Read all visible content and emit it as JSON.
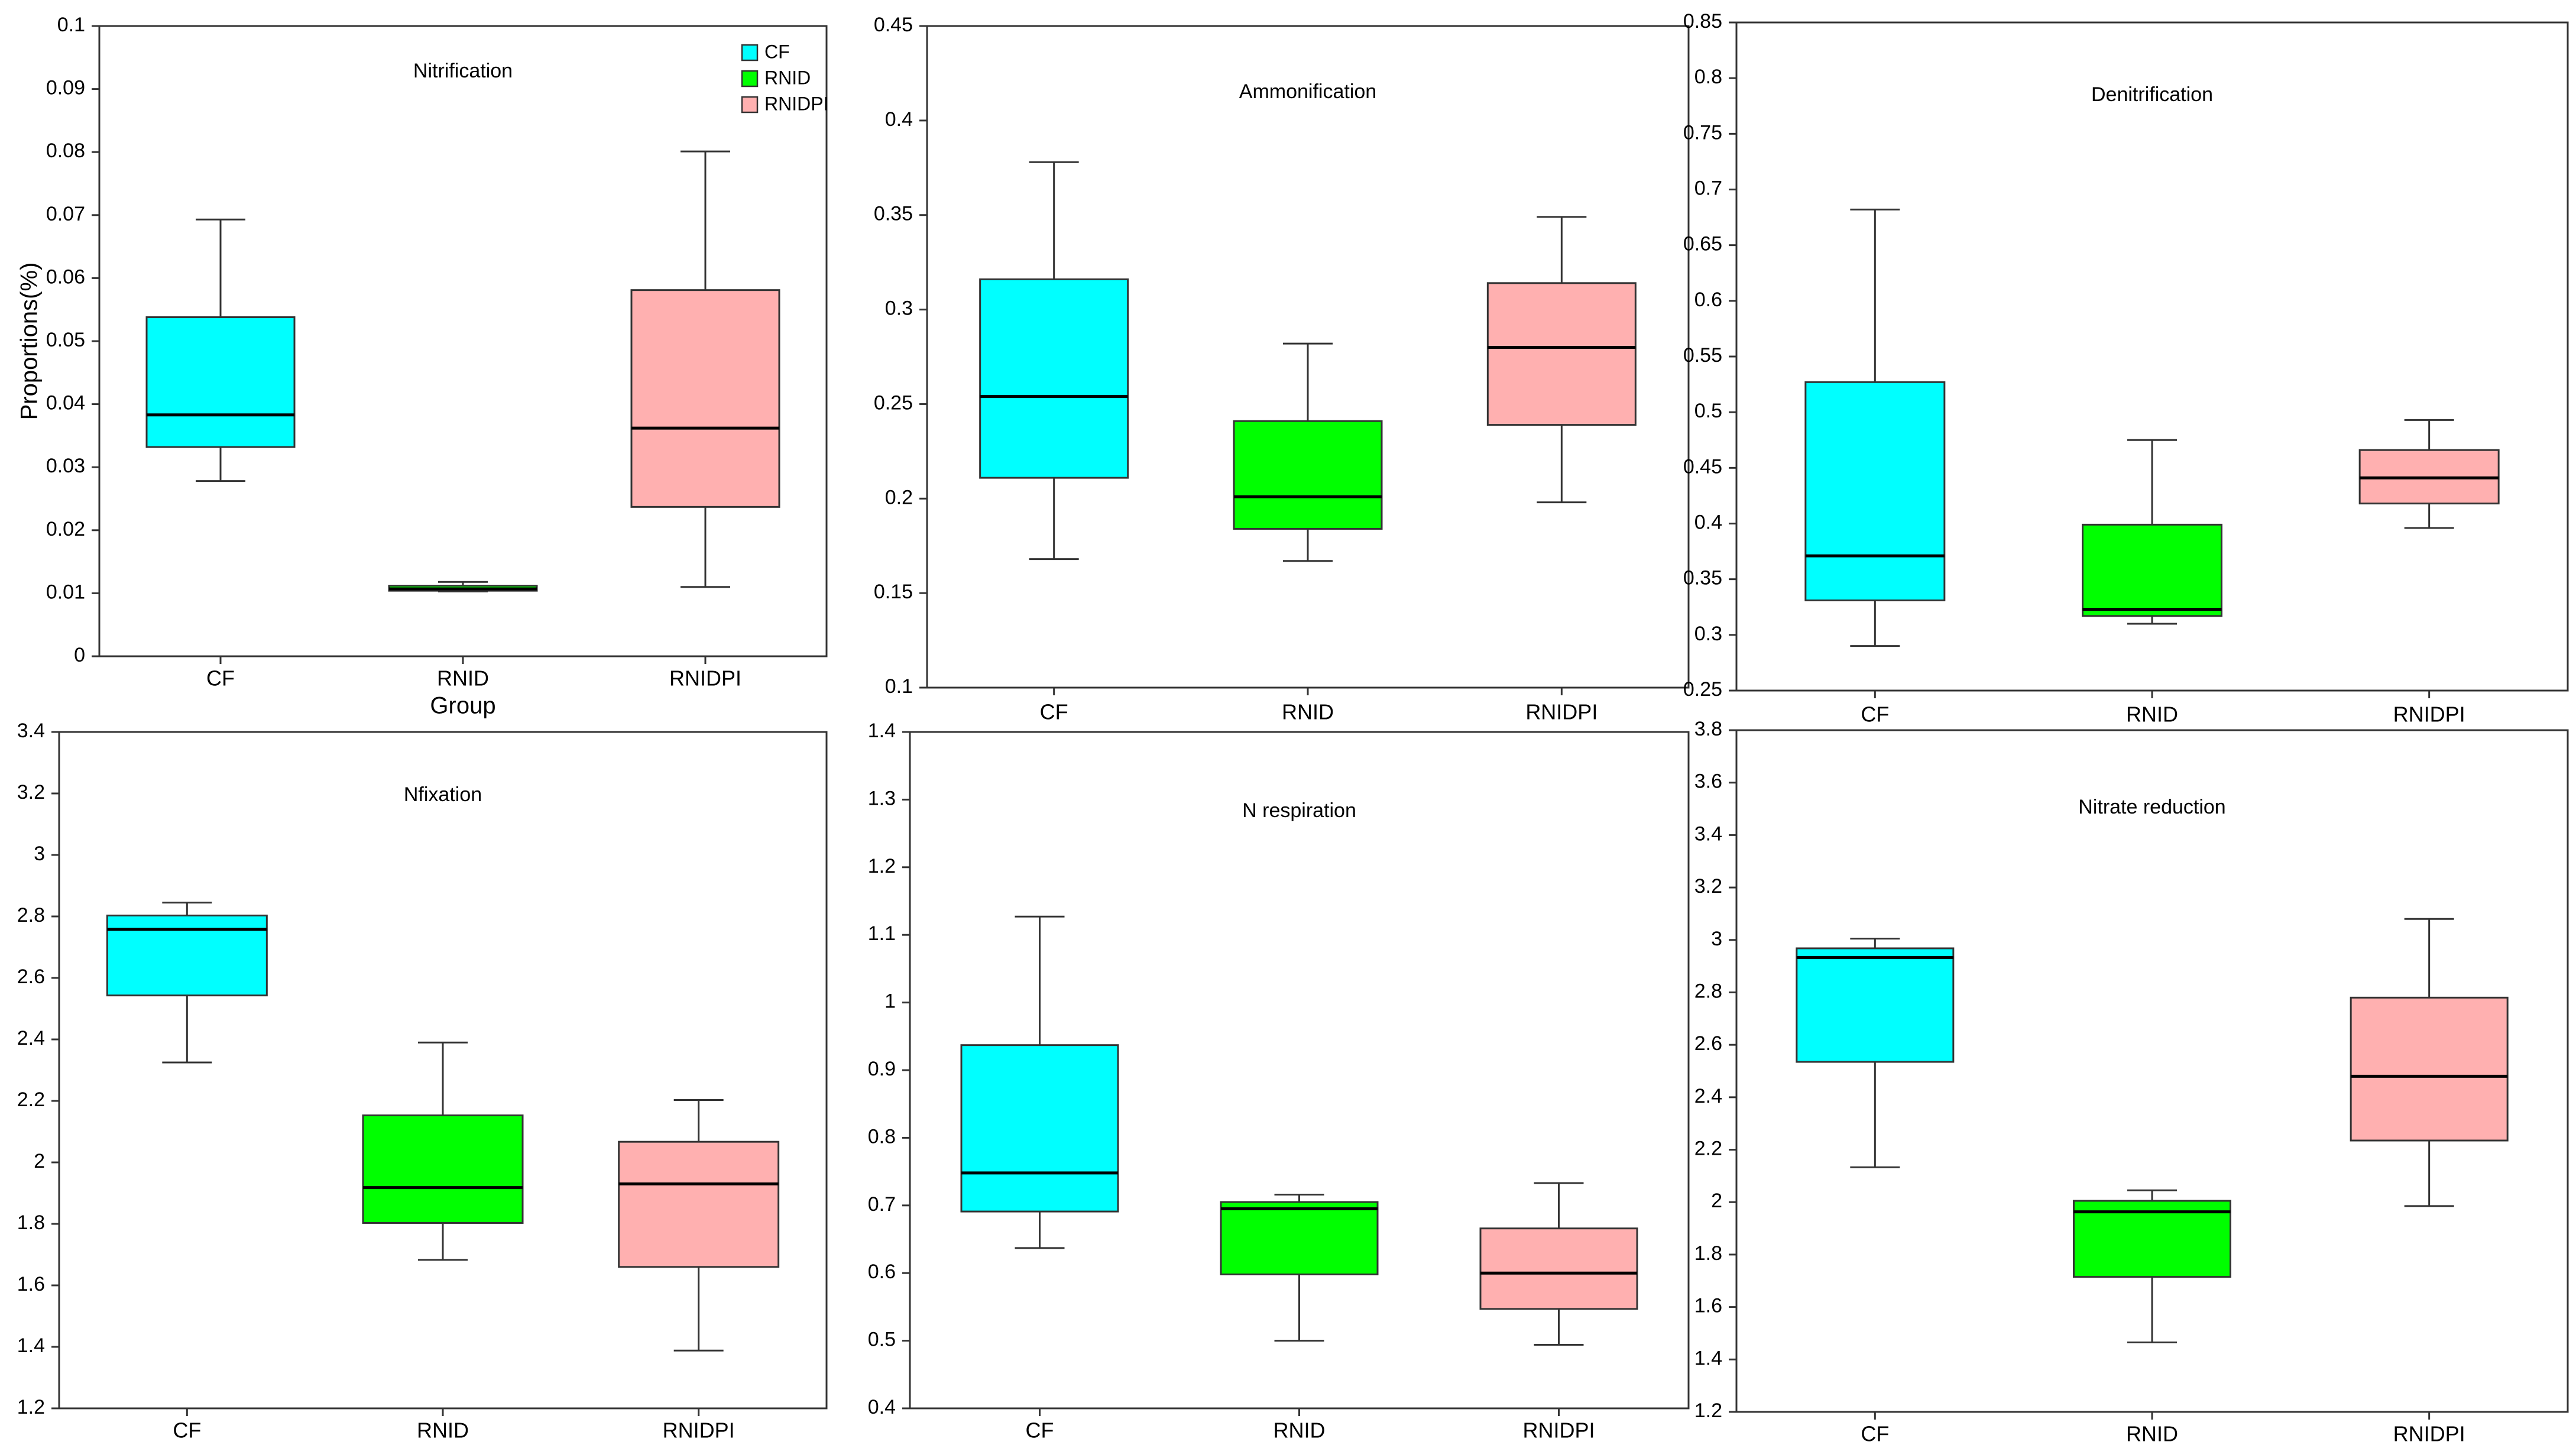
{
  "colors": {
    "CF": "#00ffff",
    "RNID": "#00ff00",
    "RNIDPI": "#ffb0b0",
    "frame": "#333333",
    "median": "#000000"
  },
  "chart_data": [
    {
      "type": "box",
      "title": "Nitrification",
      "xlabel": "Group",
      "ylabel": "Proportions(%)",
      "categories": [
        "CF",
        "RNID",
        "RNIDPI"
      ],
      "ylim": [
        0,
        0.1
      ],
      "yticks": [
        "0",
        "0.01",
        "0.02",
        "0.03",
        "0.04",
        "0.05",
        "0.06",
        "0.07",
        "0.08",
        "0.09",
        "0.1"
      ],
      "legend": [
        "CF",
        "RNID",
        "RNIDPI"
      ],
      "legend_position": "top-right",
      "boxes": [
        {
          "name": "CF",
          "min": 0.0278,
          "q1": 0.0332,
          "median": 0.0383,
          "q3": 0.0538,
          "max": 0.0693
        },
        {
          "name": "RNID",
          "min": 0.0103,
          "q1": 0.0104,
          "median": 0.0107,
          "q3": 0.0112,
          "max": 0.0118
        },
        {
          "name": "RNIDPI",
          "min": 0.011,
          "q1": 0.0237,
          "median": 0.0362,
          "q3": 0.0581,
          "max": 0.0801
        }
      ]
    },
    {
      "type": "box",
      "title": "Ammonification",
      "xlabel": "",
      "ylabel": "",
      "categories": [
        "CF",
        "RNID",
        "RNIDPI"
      ],
      "ylim": [
        0.1,
        0.45
      ],
      "yticks": [
        "0.1",
        "0.15",
        "0.2",
        "0.25",
        "0.3",
        "0.35",
        "0.4",
        "0.45"
      ],
      "boxes": [
        {
          "name": "CF",
          "min": 0.168,
          "q1": 0.211,
          "median": 0.254,
          "q3": 0.316,
          "max": 0.378
        },
        {
          "name": "RNID",
          "min": 0.167,
          "q1": 0.184,
          "median": 0.201,
          "q3": 0.241,
          "max": 0.282
        },
        {
          "name": "RNIDPI",
          "min": 0.198,
          "q1": 0.239,
          "median": 0.28,
          "q3": 0.314,
          "max": 0.349
        }
      ]
    },
    {
      "type": "box",
      "title": "Denitrification",
      "xlabel": "",
      "ylabel": "",
      "categories": [
        "CF",
        "RNID",
        "RNIDPI"
      ],
      "ylim": [
        0.25,
        0.85
      ],
      "yticks": [
        "0.25",
        "0.3",
        "0.35",
        "0.4",
        "0.45",
        "0.5",
        "0.55",
        "0.6",
        "0.65",
        "0.7",
        "0.75",
        "0.8",
        "0.85"
      ],
      "boxes": [
        {
          "name": "CF",
          "min": 0.29,
          "q1": 0.331,
          "median": 0.371,
          "q3": 0.527,
          "max": 0.682
        },
        {
          "name": "RNID",
          "min": 0.31,
          "q1": 0.317,
          "median": 0.323,
          "q3": 0.399,
          "max": 0.475
        },
        {
          "name": "RNIDPI",
          "min": 0.396,
          "q1": 0.418,
          "median": 0.441,
          "q3": 0.466,
          "max": 0.493
        }
      ]
    },
    {
      "type": "box",
      "title": "Nfixation",
      "xlabel": "",
      "ylabel": "",
      "categories": [
        "CF",
        "RNID",
        "RNIDPI"
      ],
      "ylim": [
        1.2,
        3.4
      ],
      "yticks": [
        "1.2",
        "1.4",
        "1.6",
        "1.8",
        "2",
        "2.2",
        "2.4",
        "2.6",
        "2.8",
        "3",
        "3.2",
        "3.4"
      ],
      "boxes": [
        {
          "name": "CF",
          "min": 2.325,
          "q1": 2.543,
          "median": 2.758,
          "q3": 2.803,
          "max": 2.845
        },
        {
          "name": "RNID",
          "min": 1.683,
          "q1": 1.803,
          "median": 1.918,
          "q3": 2.153,
          "max": 2.39
        },
        {
          "name": "RNIDPI",
          "min": 1.388,
          "q1": 1.66,
          "median": 1.93,
          "q3": 2.067,
          "max": 2.203
        }
      ]
    },
    {
      "type": "box",
      "title": "N respiration",
      "xlabel": "",
      "ylabel": "",
      "categories": [
        "CF",
        "RNID",
        "RNIDPI"
      ],
      "ylim": [
        0.4,
        1.4
      ],
      "yticks": [
        "0.4",
        "0.5",
        "0.6",
        "0.7",
        "0.8",
        "0.9",
        "1",
        "1.1",
        "1.2",
        "1.3",
        "1.4"
      ],
      "boxes": [
        {
          "name": "CF",
          "min": 0.637,
          "q1": 0.691,
          "median": 0.748,
          "q3": 0.937,
          "max": 1.127
        },
        {
          "name": "RNID",
          "min": 0.5,
          "q1": 0.598,
          "median": 0.695,
          "q3": 0.705,
          "max": 0.716
        },
        {
          "name": "RNIDPI",
          "min": 0.494,
          "q1": 0.547,
          "median": 0.6,
          "q3": 0.666,
          "max": 0.733
        }
      ]
    },
    {
      "type": "box",
      "title": "Nitrate reduction",
      "xlabel": "",
      "ylabel": "",
      "categories": [
        "CF",
        "RNID",
        "RNIDPI"
      ],
      "ylim": [
        1.2,
        3.8
      ],
      "yticks": [
        "1.2",
        "1.4",
        "1.6",
        "1.8",
        "2",
        "2.2",
        "2.4",
        "2.6",
        "2.8",
        "3",
        "3.2",
        "3.4",
        "3.6",
        "3.8"
      ],
      "boxes": [
        {
          "name": "CF",
          "min": 2.133,
          "q1": 2.535,
          "median": 2.933,
          "q3": 2.968,
          "max": 3.005
        },
        {
          "name": "RNID",
          "min": 1.465,
          "q1": 1.715,
          "median": 1.963,
          "q3": 2.005,
          "max": 2.045
        },
        {
          "name": "RNIDPI",
          "min": 1.985,
          "q1": 2.235,
          "median": 2.48,
          "q3": 2.78,
          "max": 3.08
        }
      ]
    }
  ]
}
